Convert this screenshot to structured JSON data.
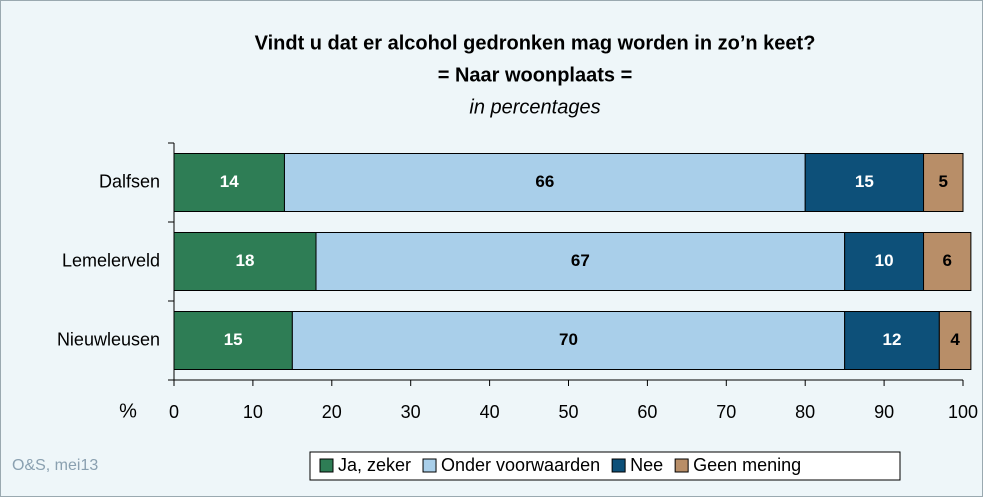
{
  "chart_data": {
    "type": "stacked_barh",
    "title": "Vindt u dat er alcohol gedronken mag worden in zo’n keet?",
    "subtitle": "= Naar woonplaats =",
    "note": "in percentages",
    "x_label": "%",
    "source": "O&S, mei13",
    "categories": [
      "Dalfsen",
      "Lemelerveld",
      "Nieuwleusen"
    ],
    "series": [
      {
        "name": "Ja, zeker",
        "color": "#2e7d55",
        "label_color": "#ffffff",
        "values": [
          14,
          18,
          15
        ]
      },
      {
        "name": "Onder voorwaarden",
        "color": "#a9cfea",
        "label_color": "#000000",
        "values": [
          66,
          67,
          70
        ]
      },
      {
        "name": "Nee",
        "color": "#0d5079",
        "label_color": "#ffffff",
        "values": [
          15,
          10,
          12
        ]
      },
      {
        "name": "Geen mening",
        "color": "#b88e68",
        "label_color": "#000000",
        "values": [
          5,
          6,
          4
        ]
      }
    ],
    "xlim": [
      0,
      100
    ],
    "xticks": [
      0,
      10,
      20,
      30,
      40,
      50,
      60,
      70,
      80,
      90,
      100
    ]
  }
}
